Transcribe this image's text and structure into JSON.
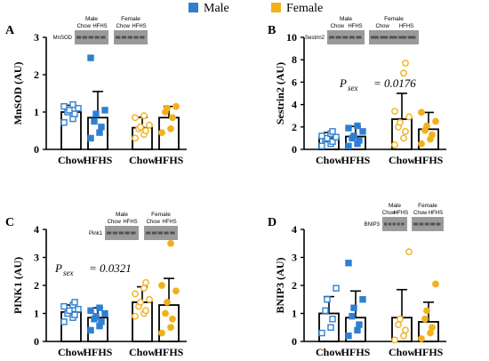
{
  "legend": {
    "items": [
      {
        "label": "Male",
        "color": "#2f7fd1"
      },
      {
        "label": "Female",
        "color": "#f2b11b"
      }
    ]
  },
  "colors": {
    "male": "#2f7fd1",
    "female": "#f2b11b",
    "axis": "#000000",
    "blot_bg": "#9a9a9a",
    "blot_band": "#3a3a3a"
  },
  "chart_data": [
    {
      "panel_letter": "A",
      "type": "bar",
      "ylabel": "MnSOD (AU)",
      "ylim": [
        0,
        3
      ],
      "yticks": [
        "0",
        "1",
        "2",
        "3"
      ],
      "categories": [
        "Chow",
        "HFHS",
        "Chow",
        "HFHS"
      ],
      "groups": [
        "Male",
        "Male",
        "Female",
        "Female"
      ],
      "means": [
        1.0,
        0.85,
        0.58,
        0.85
      ],
      "sd": [
        0.18,
        0.7,
        0.28,
        0.3
      ],
      "points": [
        [
          0.72,
          0.82,
          0.95,
          1.0,
          1.05,
          1.1,
          1.15,
          1.2
        ],
        [
          0.3,
          0.45,
          0.6,
          0.75,
          0.95,
          1.05,
          2.45
        ],
        [
          0.3,
          0.4,
          0.5,
          0.55,
          0.6,
          0.65,
          0.85,
          0.9
        ],
        [
          0.45,
          0.55,
          0.85,
          1.0,
          1.1,
          1.15
        ]
      ],
      "blot": {
        "protein_label": "MnSOD",
        "sex_labels": [
          "Male",
          "Female"
        ],
        "lane_labels": [
          "Chow",
          "HFHS",
          "Chow",
          "HFHS"
        ]
      },
      "annotation": ""
    },
    {
      "panel_letter": "B",
      "type": "bar",
      "ylabel": "Sestrin2 (AU)",
      "ylim": [
        0,
        10
      ],
      "yticks": [
        "0",
        "2",
        "4",
        "6",
        "8",
        "10"
      ],
      "categories": [
        "Chow",
        "HFHS",
        "Chow",
        "HFHS"
      ],
      "groups": [
        "Male",
        "Male",
        "Female",
        "Female"
      ],
      "means": [
        1.0,
        1.15,
        2.7,
        1.8
      ],
      "sd": [
        0.5,
        0.9,
        2.3,
        1.5
      ],
      "points": [
        [
          0.3,
          0.5,
          0.7,
          0.9,
          1.0,
          1.1,
          1.2,
          1.4,
          1.6
        ],
        [
          0.3,
          0.5,
          0.8,
          1.0,
          1.2,
          1.6,
          1.9,
          2.1
        ],
        [
          0.4,
          1.0,
          1.6,
          2.0,
          2.4,
          2.9,
          3.4,
          6.8,
          7.7
        ],
        [
          0.5,
          0.9,
          1.3,
          1.7,
          2.1,
          2.5,
          3.3
        ]
      ],
      "blot": {
        "protein_label": "Sestrin2",
        "sex_labels": [
          "Male",
          "Female"
        ],
        "lane_labels": [
          "Chow",
          "HFHS",
          "Chow",
          "HFHS"
        ]
      },
      "annotation": {
        "p_label": "P",
        "p_sub": "sex",
        "p_value": "= 0.0176"
      }
    },
    {
      "panel_letter": "C",
      "type": "bar",
      "ylabel": "PINK1 (AU)",
      "ylim": [
        0,
        4
      ],
      "yticks": [
        "0",
        "1",
        "2",
        "3",
        "4"
      ],
      "categories": [
        "Chow",
        "HFHS",
        "Chow",
        "HFHS"
      ],
      "groups": [
        "Male",
        "Male",
        "Female",
        "Female"
      ],
      "means": [
        1.05,
        0.85,
        1.4,
        1.3
      ],
      "sd": [
        0.25,
        0.35,
        0.55,
        0.95
      ],
      "points": [
        [
          0.7,
          0.85,
          0.95,
          1.0,
          1.1,
          1.15,
          1.25,
          1.3,
          1.4
        ],
        [
          0.4,
          0.55,
          0.7,
          0.8,
          0.9,
          1.0,
          1.1,
          1.2
        ],
        [
          0.9,
          1.0,
          1.1,
          1.25,
          1.4,
          1.5,
          1.7,
          1.9,
          2.1
        ],
        [
          0.3,
          0.5,
          0.8,
          1.0,
          1.4,
          1.8,
          2.0,
          3.5
        ]
      ],
      "blot": {
        "protein_label": "Pink1",
        "sex_labels": [
          "Male",
          "Female"
        ],
        "lane_labels": [
          "Chow",
          "HFHS",
          "Chow",
          "HFHS"
        ]
      },
      "annotation": {
        "p_label": "P",
        "p_sub": "sex",
        "p_value": "= 0.0321"
      }
    },
    {
      "panel_letter": "D",
      "type": "bar",
      "ylabel": "BNIP3 (AU)",
      "ylim": [
        0,
        4
      ],
      "yticks": [
        "0",
        "1",
        "2",
        "3",
        "4"
      ],
      "categories": [
        "Chow",
        "HFHS",
        "Chow",
        "HFHS"
      ],
      "groups": [
        "Male",
        "Male",
        "Female",
        "Female"
      ],
      "means": [
        1.0,
        0.85,
        0.85,
        0.7
      ],
      "sd": [
        0.6,
        0.95,
        1.0,
        0.7
      ],
      "points": [
        [
          0.3,
          0.5,
          0.8,
          1.1,
          1.5,
          1.9
        ],
        [
          0.2,
          0.4,
          0.6,
          0.9,
          1.2,
          1.5,
          2.8
        ],
        [
          0.05,
          0.2,
          0.4,
          0.6,
          0.8,
          3.2
        ],
        [
          0.1,
          0.3,
          0.5,
          0.8,
          1.1,
          2.05
        ]
      ],
      "blot": {
        "protein_label": "BNIP3",
        "sex_labels": [
          "Male",
          "Female"
        ],
        "lane_labels": [
          "Chow",
          "HFHS",
          "Chow",
          "HFHS"
        ]
      },
      "annotation": ""
    }
  ]
}
